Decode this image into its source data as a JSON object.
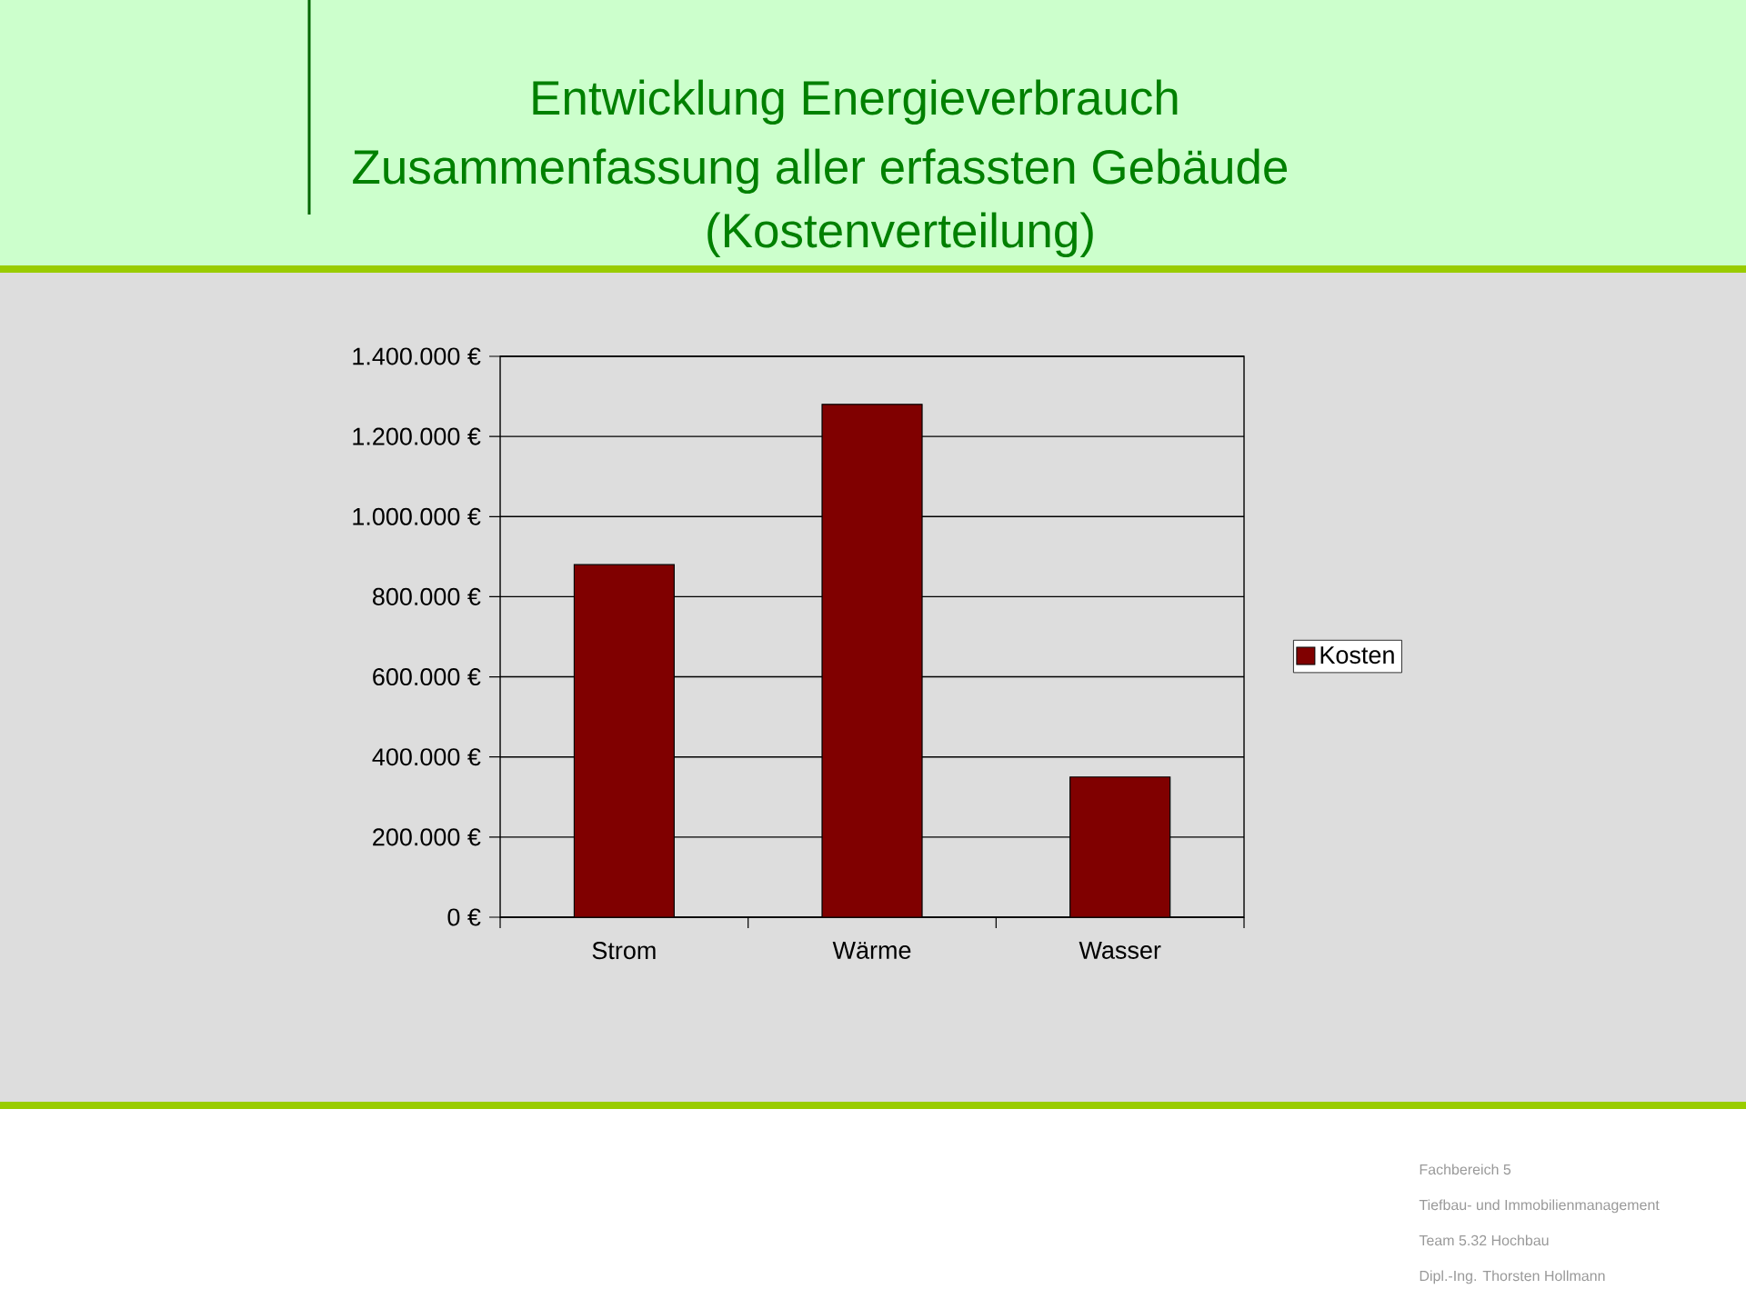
{
  "chart_data": {
    "type": "bar",
    "title": "Entwicklung Energieverbrauch",
    "subtitle": "Zusammenfassung aller erfassten Gebäude",
    "annotations": [
      "(Kostenverteilung)",
      "Fachbereich 5",
      "Tiefbau- und Immobilienmanagement",
      "Team 5.32 Hochbau",
      "Dipl.-Ing. Thorsten Hollmann"
    ],
    "categories": [
      "Strom",
      "Wärme",
      "Wasser"
    ],
    "series": [
      {
        "name": "Kosten",
        "color": "#800000",
        "values": [
          880000,
          1280000,
          350000
        ]
      }
    ],
    "ylim": [
      0,
      1400000
    ],
    "yticks": [
      {
        "value": 0,
        "label": "0 €"
      },
      {
        "value": 200000,
        "label": "200.000 €"
      },
      {
        "value": 400000,
        "label": "400.000 €"
      },
      {
        "value": 600000,
        "label": "600.000 €"
      },
      {
        "value": 800000,
        "label": "800.000 €"
      },
      {
        "value": 1000000,
        "label": "1.000.000 €"
      },
      {
        "value": 1200000,
        "label": "1.200.000 €"
      },
      {
        "value": 1400000,
        "label": "1.400.000 €"
      }
    ],
    "grid": "y",
    "legend": "right"
  }
}
